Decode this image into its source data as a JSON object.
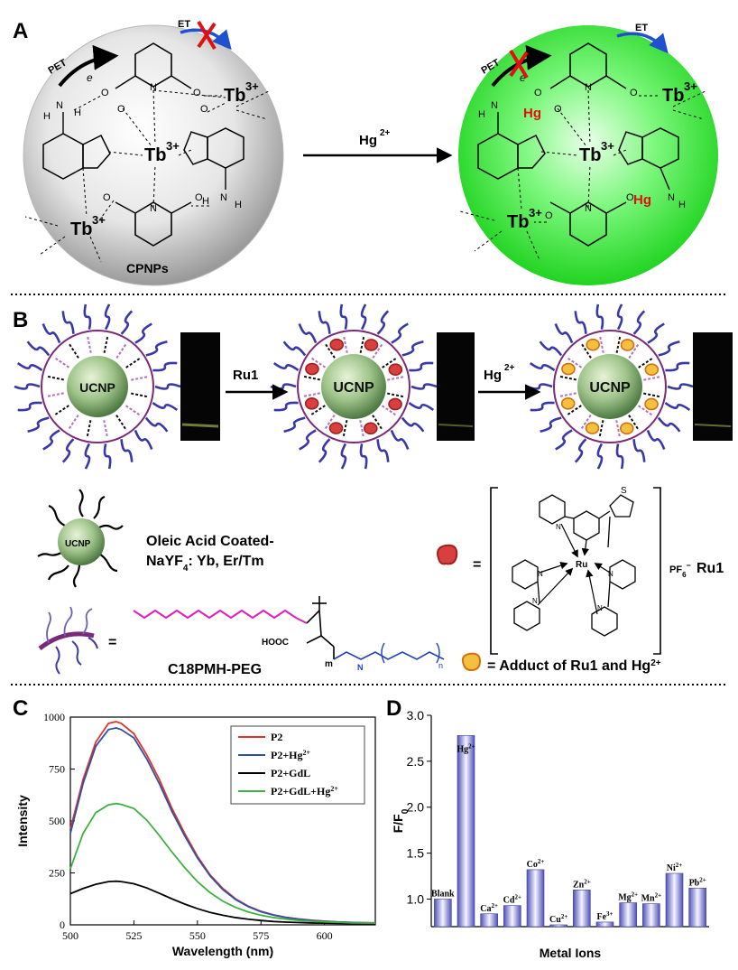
{
  "panels": {
    "a": {
      "letter": "A",
      "pet": "PET",
      "e": "e",
      "et": "ET",
      "tb": "Tb",
      "charge3": "3+",
      "nh": "N",
      "h": "H",
      "o": "O",
      "hg": "Hg",
      "arrow_label": "Hg",
      "arrow_sup": "2+",
      "caption": "CPNPs",
      "colors": {
        "left_sphere": "#d9d9d9",
        "right_sphere": "#3cf03c",
        "cross": "#e01010",
        "et_arrow": "#2050d0"
      }
    },
    "b": {
      "letter": "B",
      "ucnp": "UCNP",
      "step1": "Ru1",
      "step2": "Hg",
      "step2_sup": "2+",
      "legend_line1": "Oleic Acid Coated-",
      "legend_line2": "NaYF",
      "legend_sub": "4",
      "legend_line2b": ": Yb, Er/Tm",
      "equals": "=",
      "pf6": "PF",
      "pf6_sub": "6",
      "pf6_sup": "−",
      "ru1": "Ru1",
      "ru_center": "Ru",
      "s": "S",
      "n": "N",
      "hooc": "HOOC",
      "m": "m",
      "n_sub": "n",
      "nh_label": "N",
      "polymer_label": "C18PMH-PEG",
      "adduct_label": "= Adduct of Ru1 and Hg",
      "adduct_sup": "2+"
    },
    "c": {
      "letter": "C"
    },
    "d": {
      "letter": "D"
    }
  },
  "chart_data": [
    {
      "type": "line",
      "panel": "C",
      "xlabel": "Wavelength (nm)",
      "ylabel": "Intensity",
      "xlim": [
        500,
        620
      ],
      "ylim": [
        0,
        1000
      ],
      "xticks": [
        500,
        525,
        550,
        575,
        600
      ],
      "yticks": [
        0,
        250,
        500,
        750,
        1000
      ],
      "legend_position": "top-right",
      "x": [
        500,
        505,
        510,
        515,
        518,
        520,
        525,
        530,
        535,
        540,
        545,
        550,
        555,
        560,
        565,
        570,
        575,
        580,
        585,
        590,
        595,
        600,
        605,
        610,
        615,
        620
      ],
      "series": [
        {
          "name": "P2",
          "color": "#e03030",
          "values": [
            460,
            700,
            880,
            970,
            978,
            970,
            920,
            820,
            700,
            560,
            440,
            330,
            240,
            175,
            125,
            90,
            65,
            48,
            36,
            28,
            22,
            18,
            14,
            12,
            10,
            9
          ]
        },
        {
          "name": "P2+Hg",
          "name_sup": "2+",
          "color": "#3050a0",
          "values": [
            440,
            680,
            860,
            940,
            948,
            940,
            900,
            800,
            680,
            545,
            428,
            322,
            235,
            170,
            122,
            88,
            63,
            47,
            35,
            27,
            21,
            17,
            14,
            12,
            10,
            9
          ]
        },
        {
          "name": "P2+GdL",
          "color": "#000000",
          "values": [
            150,
            175,
            195,
            208,
            210,
            208,
            198,
            178,
            152,
            125,
            100,
            78,
            60,
            46,
            35,
            27,
            21,
            16,
            13,
            11,
            9,
            8,
            7,
            6,
            5,
            5
          ]
        },
        {
          "name": "P2+GdL+Hg",
          "name_sup": "2+",
          "color": "#40b040",
          "values": [
            270,
            440,
            540,
            578,
            584,
            580,
            560,
            505,
            430,
            350,
            275,
            208,
            155,
            114,
            84,
            62,
            46,
            35,
            27,
            21,
            17,
            14,
            12,
            10,
            9,
            8
          ]
        }
      ]
    },
    {
      "type": "bar",
      "panel": "D",
      "xlabel": "Metal Ions",
      "ylabel": "F/F",
      "ylabel_sub": "0",
      "ylim": [
        0.7,
        3.0
      ],
      "yticks": [
        1.0,
        1.5,
        2.0,
        2.5,
        3.0
      ],
      "categories": [
        "Blank",
        "Hg",
        "Ca",
        "Cd",
        "Co",
        "Cu",
        "Zn",
        "Fe",
        "Mg",
        "Mn",
        "Ni",
        "Pb"
      ],
      "category_sups": [
        "",
        "2+",
        "2+",
        "2+",
        "2+",
        "2+",
        "2+",
        "3+",
        "2+",
        "2+",
        "2+",
        "2+"
      ],
      "values": [
        1.0,
        2.78,
        0.84,
        0.93,
        1.32,
        0.72,
        1.1,
        0.75,
        0.96,
        0.95,
        1.28,
        1.12
      ],
      "color": "#8a8ad8"
    }
  ]
}
